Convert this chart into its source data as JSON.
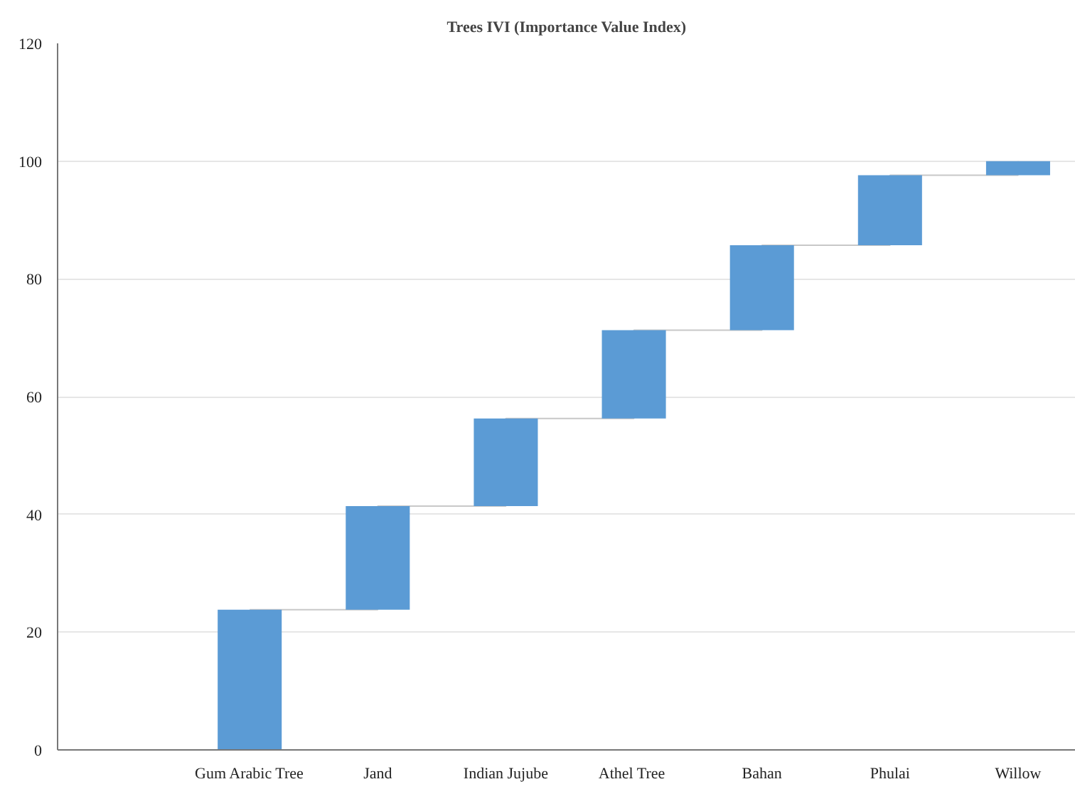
{
  "chart_data": {
    "type": "bar",
    "title": "Trees IVI (Importance Value Index)",
    "categories": [
      null,
      "Gum Arabic Tree",
      "Jand",
      "Indian Jujube",
      "Athel  Tree",
      "Bahan",
      "Phulai",
      "Willow"
    ],
    "series": [
      {
        "color": "#5b9bd5",
        "values": [
          null,
          23.8,
          17.6,
          14.9,
          15.0,
          14.4,
          11.9,
          2.4
        ],
        "base": [
          null,
          0,
          23.8,
          41.4,
          56.3,
          71.3,
          85.7,
          97.6
        ]
      },
      {
        "type": "step",
        "color": "#c8c8c8",
        "values": [
          null,
          23.8,
          41.4,
          56.3,
          71.3,
          85.7,
          97.6,
          100.0
        ]
      }
    ],
    "ylim": [
      0,
      120
    ],
    "yticks": [
      0,
      20,
      40,
      60,
      80,
      100,
      120
    ],
    "grid": "y"
  }
}
